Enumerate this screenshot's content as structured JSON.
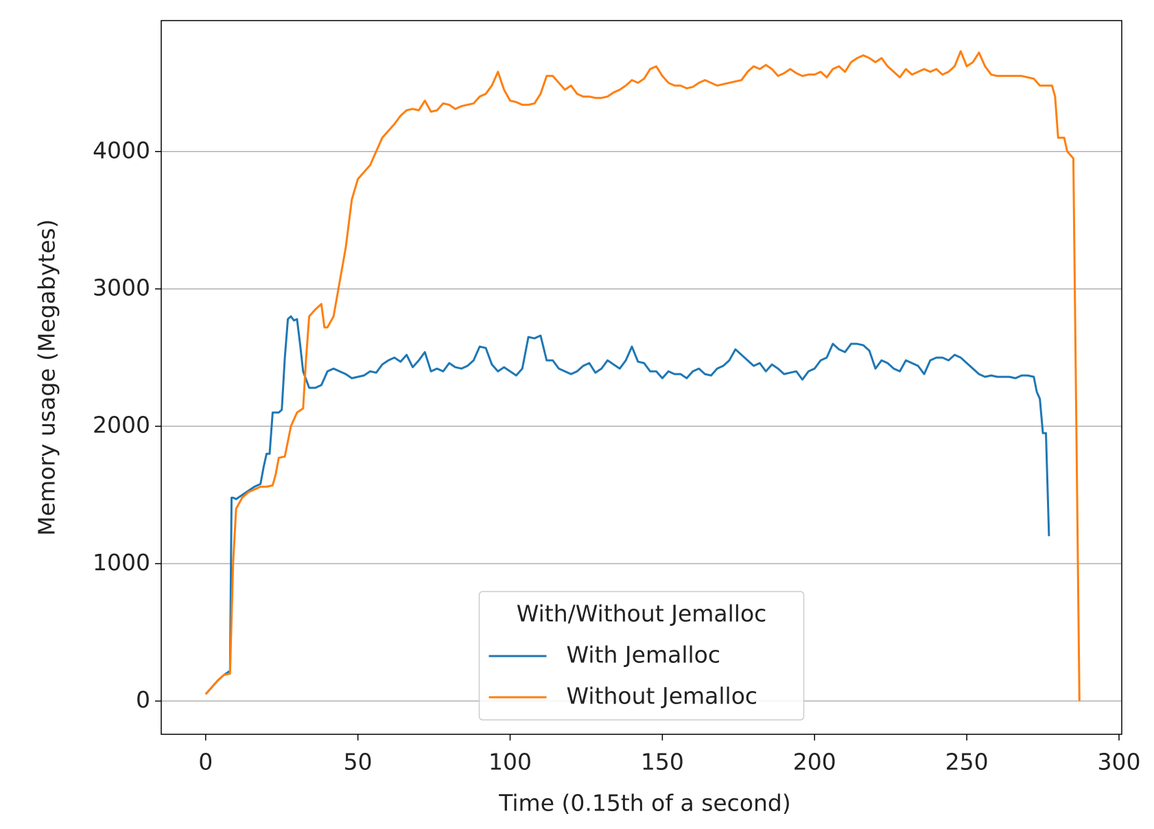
{
  "chart_data": {
    "type": "line",
    "xlabel": "Time (0.15th of a second)",
    "ylabel": "Memory usage (Megabytes)",
    "xlim": [
      -14.6,
      300.9
    ],
    "xticks": [
      0,
      50,
      100,
      150,
      200,
      250,
      300
    ],
    "ylim": [
      -242,
      4953
    ],
    "yticks": [
      0,
      1000,
      2000,
      3000,
      4000
    ],
    "grid": "y",
    "legend_title": "With/Without Jemalloc",
    "legend_position": "lower center",
    "series": [
      {
        "name": "With Jemalloc",
        "color": "#1f77b4",
        "x": [
          0,
          2,
          4,
          6,
          8,
          8.5,
          9,
          10,
          12,
          14,
          16,
          18,
          19,
          20,
          21,
          22,
          24,
          25,
          26,
          27,
          28,
          29,
          30,
          31,
          32,
          34,
          36,
          38,
          40,
          42,
          44,
          46,
          48,
          50,
          52,
          54,
          56,
          58,
          60,
          62,
          64,
          66,
          68,
          70,
          72,
          74,
          76,
          78,
          80,
          82,
          84,
          86,
          88,
          90,
          92,
          94,
          96,
          98,
          100,
          102,
          104,
          106,
          108,
          110,
          112,
          114,
          116,
          118,
          120,
          122,
          124,
          126,
          128,
          130,
          132,
          134,
          136,
          138,
          140,
          142,
          144,
          146,
          148,
          150,
          152,
          154,
          156,
          158,
          160,
          162,
          164,
          166,
          168,
          170,
          172,
          174,
          176,
          178,
          180,
          182,
          184,
          186,
          188,
          190,
          192,
          194,
          196,
          198,
          200,
          202,
          204,
          206,
          208,
          210,
          212,
          214,
          216,
          218,
          220,
          222,
          224,
          226,
          228,
          230,
          232,
          234,
          236,
          238,
          240,
          242,
          244,
          246,
          248,
          250,
          252,
          254,
          256,
          258,
          260,
          262,
          264,
          266,
          268,
          270,
          272,
          273,
          274,
          275,
          276,
          277
        ],
        "values": [
          50,
          100,
          150,
          190,
          220,
          1480,
          1480,
          1470,
          1500,
          1530,
          1560,
          1580,
          1700,
          1800,
          1800,
          2100,
          2100,
          2120,
          2500,
          2780,
          2800,
          2770,
          2780,
          2600,
          2400,
          2280,
          2280,
          2300,
          2400,
          2420,
          2400,
          2380,
          2350,
          2360,
          2370,
          2400,
          2390,
          2450,
          2480,
          2500,
          2470,
          2520,
          2430,
          2480,
          2540,
          2400,
          2420,
          2400,
          2460,
          2430,
          2420,
          2440,
          2480,
          2580,
          2570,
          2450,
          2400,
          2430,
          2400,
          2370,
          2420,
          2650,
          2640,
          2660,
          2480,
          2480,
          2420,
          2400,
          2380,
          2400,
          2440,
          2460,
          2390,
          2420,
          2480,
          2450,
          2420,
          2480,
          2580,
          2470,
          2460,
          2400,
          2400,
          2350,
          2400,
          2380,
          2380,
          2350,
          2400,
          2420,
          2380,
          2370,
          2420,
          2440,
          2480,
          2560,
          2520,
          2480,
          2440,
          2460,
          2400,
          2450,
          2420,
          2380,
          2390,
          2400,
          2340,
          2400,
          2420,
          2480,
          2500,
          2600,
          2560,
          2540,
          2600,
          2600,
          2590,
          2550,
          2420,
          2480,
          2460,
          2420,
          2400,
          2480,
          2460,
          2440,
          2380,
          2480,
          2500,
          2500,
          2480,
          2520,
          2500,
          2460,
          2420,
          2380,
          2360,
          2370,
          2360,
          2360,
          2360,
          2350,
          2370,
          2370,
          2360,
          2250,
          2200,
          1950,
          1950,
          1200
        ]
      },
      {
        "name": "Without Jemalloc",
        "color": "#ff7f0e",
        "x": [
          0,
          2,
          4,
          6,
          8,
          9,
          10,
          12,
          14,
          16,
          18,
          20,
          22,
          23,
          24,
          26,
          28,
          30,
          32,
          33,
          34,
          36,
          38,
          39,
          40,
          42,
          44,
          46,
          48,
          50,
          52,
          54,
          56,
          58,
          60,
          62,
          64,
          66,
          68,
          70,
          72,
          74,
          76,
          78,
          80,
          82,
          84,
          86,
          88,
          90,
          92,
          94,
          96,
          98,
          100,
          102,
          104,
          106,
          108,
          110,
          112,
          114,
          116,
          118,
          120,
          122,
          124,
          126,
          128,
          130,
          132,
          134,
          136,
          138,
          140,
          142,
          144,
          146,
          148,
          150,
          152,
          154,
          156,
          158,
          160,
          162,
          164,
          166,
          168,
          170,
          172,
          174,
          176,
          178,
          180,
          182,
          184,
          186,
          188,
          190,
          192,
          194,
          196,
          198,
          200,
          202,
          204,
          206,
          208,
          210,
          212,
          214,
          216,
          218,
          220,
          222,
          224,
          226,
          228,
          230,
          232,
          234,
          236,
          238,
          240,
          242,
          244,
          246,
          248,
          250,
          252,
          254,
          256,
          258,
          260,
          262,
          264,
          266,
          268,
          270,
          272,
          274,
          276,
          278,
          279,
          280,
          282,
          283,
          285,
          287
        ],
        "values": [
          50,
          100,
          150,
          190,
          200,
          1000,
          1400,
          1480,
          1520,
          1540,
          1560,
          1560,
          1570,
          1650,
          1770,
          1780,
          2000,
          2100,
          2130,
          2500,
          2800,
          2850,
          2890,
          2720,
          2720,
          2800,
          3050,
          3300,
          3650,
          3800,
          3850,
          3900,
          4000,
          4100,
          4150,
          4200,
          4260,
          4300,
          4310,
          4300,
          4370,
          4290,
          4300,
          4350,
          4340,
          4310,
          4330,
          4340,
          4350,
          4400,
          4420,
          4480,
          4580,
          4450,
          4370,
          4360,
          4340,
          4340,
          4350,
          4420,
          4550,
          4550,
          4500,
          4450,
          4480,
          4420,
          4400,
          4400,
          4390,
          4390,
          4400,
          4430,
          4450,
          4480,
          4520,
          4500,
          4530,
          4600,
          4620,
          4550,
          4500,
          4480,
          4480,
          4460,
          4470,
          4500,
          4520,
          4500,
          4480,
          4490,
          4500,
          4510,
          4520,
          4580,
          4620,
          4600,
          4630,
          4600,
          4550,
          4570,
          4600,
          4570,
          4550,
          4560,
          4560,
          4580,
          4540,
          4600,
          4620,
          4580,
          4650,
          4680,
          4700,
          4680,
          4650,
          4680,
          4620,
          4580,
          4540,
          4600,
          4560,
          4580,
          4600,
          4580,
          4600,
          4560,
          4580,
          4620,
          4730,
          4620,
          4650,
          4720,
          4620,
          4560,
          4550,
          4550,
          4550,
          4550,
          4550,
          4540,
          4530,
          4480,
          4480,
          4480,
          4400,
          4100,
          4100,
          4000,
          3950,
          0
        ]
      }
    ]
  }
}
